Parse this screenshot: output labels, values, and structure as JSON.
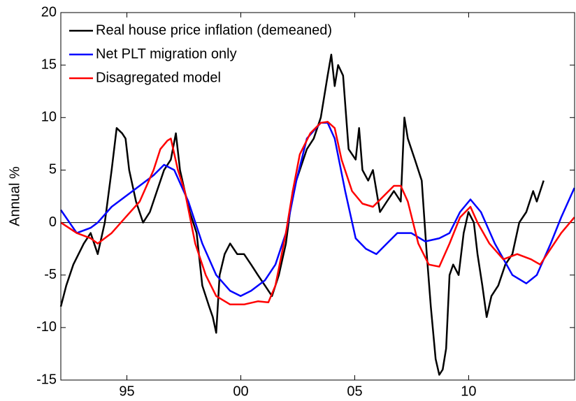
{
  "chart_data": {
    "type": "line",
    "ylabel": "Annual %",
    "xlim": [
      1992.1,
      2014.65
    ],
    "xticks": [
      {
        "value": 1995,
        "label": "95"
      },
      {
        "value": 2000,
        "label": "00"
      },
      {
        "value": 2005,
        "label": "05"
      },
      {
        "value": 2010,
        "label": "10"
      }
    ],
    "ylim": [
      -15,
      20
    ],
    "yticks": [
      -15,
      -10,
      -5,
      0,
      5,
      10,
      15,
      20
    ],
    "grid": false,
    "legend": "upper left",
    "series": [
      {
        "name": "Real house price inflation (demeaned)",
        "color": "#000000",
        "x": [
          1992.1,
          1992.34,
          1992.65,
          1993.11,
          1993.41,
          1993.72,
          1994.03,
          1994.33,
          1994.55,
          1994.79,
          1994.94,
          1995.1,
          1995.4,
          1995.71,
          1996.01,
          1996.32,
          1996.63,
          1996.93,
          1997.15,
          1997.33,
          1997.54,
          1997.76,
          1998.06,
          1998.31,
          1998.61,
          1998.77,
          1998.92,
          1999.07,
          1999.29,
          1999.53,
          1999.84,
          2000.14,
          2000.45,
          2000.75,
          2001.06,
          2001.37,
          2001.67,
          2001.98,
          2002.28,
          2002.59,
          2002.9,
          2003.2,
          2003.51,
          2003.81,
          2003.97,
          2004.12,
          2004.27,
          2004.49,
          2004.73,
          2005.04,
          2005.19,
          2005.34,
          2005.59,
          2005.8,
          2006.11,
          2006.41,
          2006.72,
          2007.02,
          2007.18,
          2007.33,
          2007.64,
          2007.94,
          2008.16,
          2008.34,
          2008.55,
          2008.71,
          2008.86,
          2009.01,
          2009.16,
          2009.32,
          2009.56,
          2009.78,
          2009.99,
          2010.23,
          2010.39,
          2010.6,
          2010.79,
          2011,
          2011.3,
          2011.61,
          2011.92,
          2012.22,
          2012.53,
          2012.83,
          2012.99,
          2013.29
        ],
        "values": [
          -8,
          -6,
          -4,
          -2,
          -1,
          -3,
          0,
          5,
          9,
          8.5,
          8,
          5,
          2,
          0,
          1,
          3,
          5,
          6,
          8.5,
          5,
          3,
          1,
          -1,
          -6,
          -8,
          -9,
          -10.5,
          -5,
          -3,
          -2,
          -3,
          -3,
          -4,
          -5,
          -6,
          -7,
          -5,
          -2,
          3,
          5,
          7,
          8,
          10,
          14,
          16,
          13,
          15,
          14,
          7,
          6,
          9,
          5,
          4,
          5,
          1,
          2,
          3,
          2,
          10,
          8,
          6,
          4,
          -3,
          -8,
          -13,
          -14.5,
          -14,
          -12,
          -5,
          -4,
          -5,
          -1,
          1,
          0,
          -3,
          -6,
          -9,
          -7,
          -6,
          -4,
          -3,
          0,
          1,
          3,
          2,
          4
        ]
      },
      {
        "name": "Net PLT migration only",
        "color": "#0000ff",
        "x": [
          1992.1,
          1992.8,
          1993.41,
          1993.72,
          1994.33,
          1995.25,
          1996.17,
          1996.63,
          1997.08,
          1997.7,
          1998.31,
          1998.92,
          1999.53,
          1999.99,
          2000.45,
          2001.06,
          2001.52,
          2001.98,
          2002.44,
          2002.9,
          2003.51,
          2003.81,
          2004.12,
          2004.58,
          2005.04,
          2005.49,
          2005.95,
          2006.41,
          2006.87,
          2007.48,
          2008.09,
          2008.71,
          2009.16,
          2009.62,
          2010.08,
          2010.54,
          2011.15,
          2011.92,
          2012.53,
          2012.99,
          2013.6,
          2014.06,
          2014.64
        ],
        "values": [
          1.2,
          -1,
          -0.5,
          0,
          1.5,
          3,
          4.5,
          5.5,
          5,
          2,
          -2,
          -5,
          -6.5,
          -7,
          -6.5,
          -5.5,
          -4,
          -1,
          4,
          8,
          9.5,
          9.5,
          8,
          3,
          -1.5,
          -2.5,
          -3,
          -2,
          -1,
          -1,
          -1.8,
          -1.5,
          -1,
          1,
          2.2,
          1,
          -2,
          -5,
          -5.8,
          -5,
          -2,
          0.5,
          3.3
        ]
      },
      {
        "name": "Disagregated model",
        "color": "#ff0000",
        "x": [
          1992.1,
          1992.8,
          1993.41,
          1993.72,
          1994.33,
          1994.94,
          1995.56,
          1996.17,
          1996.47,
          1996.78,
          1996.93,
          1997.24,
          1997.54,
          1998.0,
          1998.46,
          1998.92,
          1999.53,
          2000.14,
          2000.75,
          2001.21,
          2001.52,
          2001.98,
          2002.28,
          2002.59,
          2003.05,
          2003.51,
          2003.81,
          2004.12,
          2004.42,
          2004.88,
          2005.34,
          2005.8,
          2006.26,
          2006.72,
          2007.02,
          2007.33,
          2007.79,
          2008.25,
          2008.71,
          2009.16,
          2009.62,
          2010.08,
          2010.39,
          2010.91,
          2011.52,
          2012.13,
          2012.74,
          2013.14,
          2013.6,
          2014.06,
          2014.64
        ],
        "values": [
          0,
          -1,
          -1.5,
          -2,
          -1,
          0.5,
          2,
          5,
          7,
          7.8,
          8,
          5,
          3,
          -2,
          -5,
          -7,
          -7.8,
          -7.8,
          -7.5,
          -7.6,
          -6,
          -1,
          3,
          6.5,
          8.5,
          9.5,
          9.6,
          9,
          6,
          3,
          1.8,
          1.5,
          2.5,
          3.5,
          3.5,
          2,
          -2,
          -4,
          -4.2,
          -2,
          0.5,
          1.5,
          0,
          -2,
          -3.5,
          -3,
          -3.5,
          -4,
          -2.5,
          -1,
          0.5
        ]
      }
    ]
  }
}
